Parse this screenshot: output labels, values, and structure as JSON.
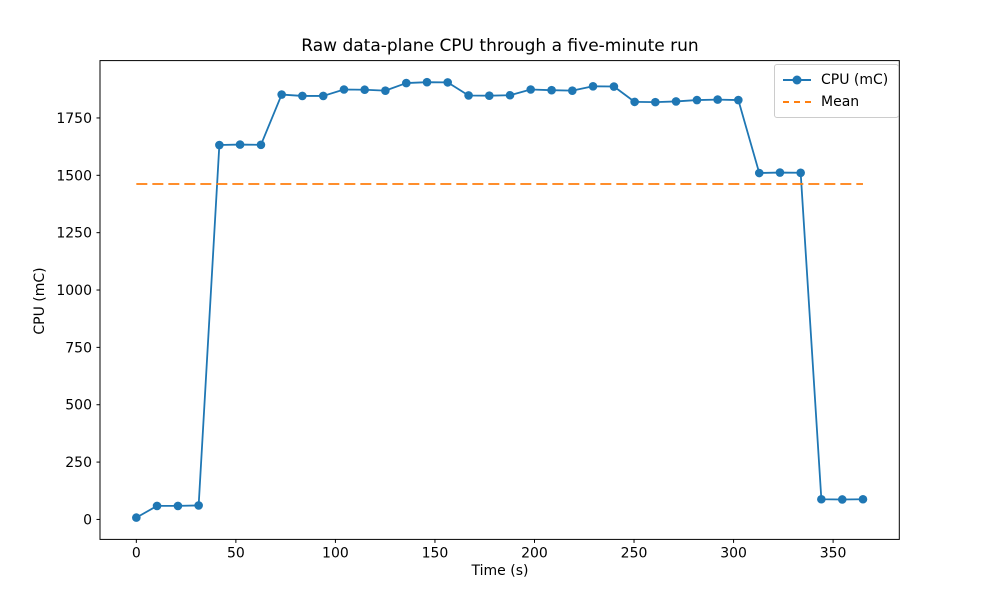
{
  "chart_data": {
    "type": "line",
    "title": "Raw data-plane CPU through a five-minute run",
    "xlabel": "Time (s)",
    "ylabel": "CPU (mC)",
    "xlim": [
      -18.25,
      383.25
    ],
    "ylim": [
      -87,
      2000
    ],
    "xticks": [
      0,
      50,
      100,
      150,
      200,
      250,
      300,
      350
    ],
    "yticks": [
      0,
      250,
      500,
      750,
      1000,
      1250,
      1500,
      1750
    ],
    "grid": false,
    "legend_position": "upper right",
    "series": [
      {
        "name": "CPU (mC)",
        "color": "#1f77b4",
        "marker": "circle",
        "linestyle": "solid",
        "x": [
          0.0,
          10.4,
          20.9,
          31.3,
          41.7,
          52.1,
          62.6,
          73.0,
          83.4,
          93.9,
          104.3,
          114.7,
          125.1,
          135.6,
          146.0,
          156.4,
          166.9,
          177.3,
          187.7,
          198.1,
          208.6,
          219.0,
          229.4,
          239.9,
          250.3,
          260.7,
          271.1,
          281.6,
          292.0,
          302.4,
          312.9,
          323.3,
          333.7,
          344.1,
          354.6,
          365.0
        ],
        "y": [
          8,
          59,
          59,
          61,
          1632,
          1634,
          1633,
          1852,
          1846,
          1846,
          1874,
          1873,
          1869,
          1902,
          1906,
          1905,
          1848,
          1847,
          1849,
          1874,
          1871,
          1869,
          1888,
          1887,
          1820,
          1819,
          1822,
          1828,
          1830,
          1828,
          1510,
          1512,
          1511,
          88,
          87,
          88
        ]
      }
    ],
    "mean_line": {
      "name": "Mean",
      "color": "#ff7f0e",
      "linestyle": "dashed",
      "value": 1462,
      "x_start": 0,
      "x_end": 365
    },
    "legend": {
      "entries": [
        "CPU (mC)",
        "Mean"
      ]
    },
    "axis_color": "#000000"
  }
}
